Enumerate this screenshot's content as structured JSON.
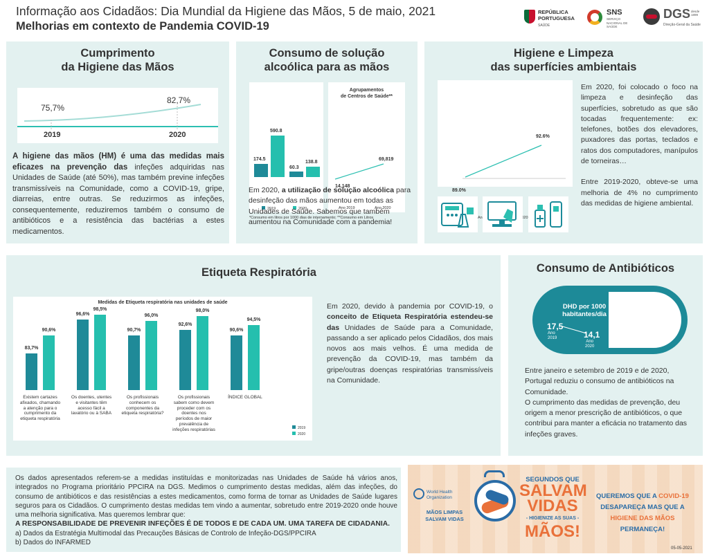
{
  "header": {
    "title": "Informação aos Cidadãos: Dia Mundial da Higiene das Mãos, 5 de maio, 2021",
    "subtitle": "Melhorias em contexto de Pandemia COVID-19",
    "logos": {
      "republica": "REPÚBLICA PORTUGUESA",
      "republica_sub": "SAÚDE",
      "sns": "SNS",
      "sns_sub": "SERVIÇO NACIONAL DE SAÚDE",
      "dgs": "DGS",
      "dgs_desde": "desde 1899",
      "dgs_sub": "Direção-Geral da Saúde"
    }
  },
  "hand_hygiene": {
    "title_line1": "Cumprimento",
    "title_line2": "da Higiene das Mãos",
    "value_2019": "75,7%",
    "value_2020": "82,7%",
    "year_2019": "2019",
    "year_2020": "2020",
    "text_bold": "A higiene das mãos (HM) é uma das medidas mais eficazes na prevenção das",
    "text_rest": " infeções adquiridas nas Unidades de Saúde (até 50%), mas também previne infeções transmissíveis na Comunidade, como a  COVID-19, gripe, diarreias, entre outras. Se reduzirmos as  infeções, consequentemente, reduziremos também o consumo de antibióticos e a resistência das bactérias a estes medicamentos."
  },
  "alcohol": {
    "title_line1": "Consumo de solução",
    "title_line2": "alcoólica para as mãos",
    "bar_labels": [
      "174.5",
      "590.8",
      "60.3",
      "138.8"
    ],
    "legend_2019": "2019",
    "legend_2020": "2020",
    "line_title": "Agrupamentos\nde Centros de Saúde**",
    "line_start": "14,148",
    "line_end": "69,819",
    "line_x1": "Ano 2019",
    "line_x2": "Ano 2020",
    "footnote": "*Consumo em litros por 1000 dias de internamento; **Consumo em Litros",
    "text_pre": "Em 2020, ",
    "text_bold": "a utilização de solução alcoólica",
    "text_rest": " para desinfeção das mãos aumentou em todas as Unidades de Saúde. Sabemos que também aumentou na Comunidade com a pandemia!"
  },
  "surfaces": {
    "title_line1": "Higiene e Limpeza",
    "title_line2": "das superfícies ambientais",
    "val_start": "89.0%",
    "val_end": "92.6%",
    "x1": "Ano 2019",
    "x2": "Ano 2020",
    "text1": "Em 2020, foi colocado o foco na limpeza e desinfeção das superfícies, sobretudo as que são tocadas frequentemente: ex: telefones, botões dos elevadores, puxadores das portas, teclados e ratos dos computadores, manípulos de torneiras…",
    "text2": "Entre 2019-2020, obteve-se uma melhoria de 4% no cumprimento das medidas de higiene ambiental."
  },
  "respiratory": {
    "title": "Etiqueta Respiratória",
    "chart_title": "Medidas de Etiqueta respiratória nas unidades de saúde",
    "text_pre": "Em 2020, devido à pandemia por COVID-19, o ",
    "text_bold": "conceito de Etiqueta Respiratória estendeu-se das",
    "text_rest": " Unidades de Saúde para a Comunidade, passando a ser aplicado pelos Cidadãos, dos mais novos aos mais velhos. É uma medida de prevenção da COVID-19, mas também da gripe/outras doenças respiratórias transmissíveis na Comunidade.",
    "legend_2019": "2019",
    "legend_2020": "2020"
  },
  "chart_data": {
    "type": "bar",
    "title": "Medidas de Etiqueta respiratória nas unidades de saúde",
    "categories": [
      "Existem cartazes afixados, chamando a atenção para o cumprimento da etiqueta respiratória",
      "Os doentes, utentes e visitantes têm acesso fácil a lavatório ou à SABA",
      "Os profissionais conhecem os componentes da etiqueta respiratória?",
      "Os profissionais sabem como devem proceder com os doentes nos períodos de maior prevalência de infeções respiratórias",
      "ÍNDICE GLOBAL"
    ],
    "series": [
      {
        "name": "2019",
        "values": [
          83.7,
          96.6,
          90.7,
          92.6,
          90.6
        ],
        "labels": [
          "83,7%",
          "96,6%",
          "90,7%",
          "92,6%",
          "90,6%"
        ]
      },
      {
        "name": "2020",
        "values": [
          90.6,
          98.5,
          96.0,
          98.0,
          94.5
        ],
        "labels": [
          "90,6%",
          "98,5%",
          "96,0%",
          "98,0%",
          "94,5%"
        ]
      }
    ],
    "ylim": [
      70,
      100
    ]
  },
  "antibiotics": {
    "title": "Consumo de Antibióticos",
    "pill_title": "DHD por 1000\nhabitantes/dia",
    "val_2019": "17,5",
    "lbl_2019": "Ano\n2019",
    "val_2020": "14,1",
    "lbl_2020": "Ano\n2020",
    "text1": "Entre janeiro e setembro de 2019 e de 2020, Portugal reduziu o consumo de antibióticos na Comunidade.",
    "text2": "O cumprimento das medidas de prevenção, deu origem a menor prescrição de antibióticos, o que contribui para manter a eficácia no tratamento das infeções graves."
  },
  "footer": {
    "text": "Os dados apresentados referem-se a medidas instituídas e monitorizadas nas Unidades de Saúde há vários anos, integrados no Programa prioritário PPCIRA na DGS. Medimos o cumprimento destas medidas, além das infeções, do consumo de antibióticos e das resistências a estes medicamentos, como forma de tornar as Unidades de Saúde lugares seguros para os Cidadãos. O cumprimento destas medidas tem vindo a aumentar, sobretudo entre 2019-2020 onde houve uma melhoria significativa. Mas queremos lembrar que:",
    "bold": "A RESPONSABILIDADE DE PREVENIR INFEÇÕES É DE TODOS E DE CADA UM. UMA TAREFA DE CIDADANIA.",
    "src_a": "a) Dados da Estratégia Multimodal das Precauções Básicas de Controlo de Infeção-DGS/PPCIRA",
    "src_b": "b) Dados do INFARMED"
  },
  "banner": {
    "who": "World Health\nOrganization",
    "maos_limpas": "MÃOS LIMPAS\nSALVAM VIDAS",
    "segundos": "SEGUNDOS QUE",
    "salvam": "SALVAM",
    "vidas": "VIDAS",
    "higienize": "- HIGIENIZE AS SUAS -",
    "maos": "MÃOS!",
    "q1": "QUEREMOS QUE A ",
    "q_covid": "COVID-19",
    "q2": " DESAPAREÇA MAS QUE A ",
    "q_higiene": "HIGIENE DAS MÃOS",
    "q3": " PERMANEÇA!",
    "date": "05-05-2021"
  }
}
